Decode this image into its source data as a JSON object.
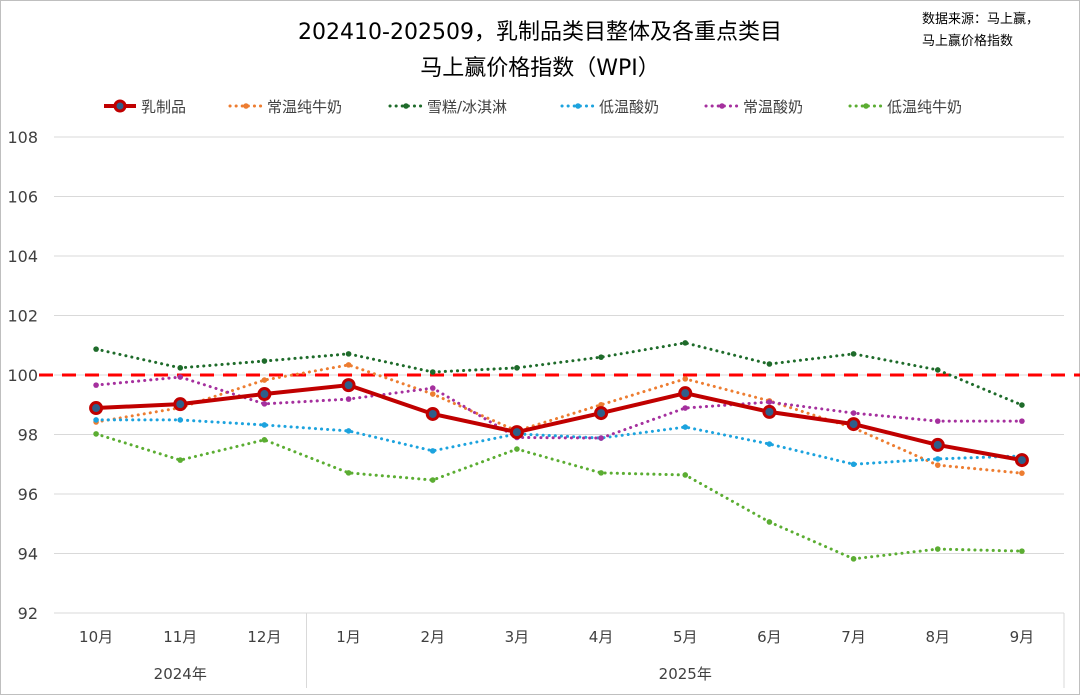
{
  "chart_data": {
    "type": "line",
    "title": "202410-202509，乳制品类目整体及各重点类目",
    "subtitle": "马上赢价格指数（WPI）",
    "source_line1": "数据来源：马上赢，",
    "source_line2": "马上赢价格指数",
    "categories": [
      "10月",
      "11月",
      "12月",
      "1月",
      "2月",
      "3月",
      "4月",
      "5月",
      "6月",
      "7月",
      "8月",
      "9月"
    ],
    "year_groups": [
      {
        "label": "2024年",
        "count": 3
      },
      {
        "label": "2025年",
        "count": 9
      }
    ],
    "ylim": [
      92,
      108
    ],
    "yticks": [
      "92",
      "94",
      "96",
      "98",
      "100",
      "102",
      "104",
      "106",
      "108"
    ],
    "reference_line": 100,
    "reference_color": "#FF0000",
    "grid": true,
    "legend_position": "top",
    "series": [
      {
        "name": "乳制品",
        "color": "#C00000",
        "style": "solid-marker",
        "values": [
          98.89,
          99.02,
          99.36,
          99.66,
          98.69,
          98.08,
          98.72,
          99.39,
          98.76,
          98.35,
          97.65,
          97.14
        ]
      },
      {
        "name": "常温纯牛奶",
        "color": "#ED7D31",
        "style": "dotted",
        "values": [
          98.42,
          98.9,
          99.83,
          100.34,
          99.36,
          98.12,
          99.0,
          99.87,
          99.13,
          98.22,
          96.97,
          96.7
        ]
      },
      {
        "name": "雪糕/冰淇淋",
        "color": "#1E6B2A",
        "style": "dotted",
        "values": [
          100.87,
          100.24,
          100.47,
          100.71,
          100.1,
          100.24,
          100.6,
          101.08,
          100.37,
          100.71,
          100.17,
          98.99
        ]
      },
      {
        "name": "低温酸奶",
        "color": "#1CA3DE",
        "style": "dotted",
        "values": [
          98.49,
          98.49,
          98.32,
          98.12,
          97.45,
          98.02,
          97.88,
          98.25,
          97.68,
          97.0,
          97.18,
          97.28
        ]
      },
      {
        "name": "常温酸奶",
        "color": "#A5309E",
        "style": "dotted",
        "values": [
          99.66,
          99.93,
          99.03,
          99.19,
          99.56,
          97.9,
          97.88,
          98.89,
          99.09,
          98.72,
          98.45,
          98.45
        ]
      },
      {
        "name": "低温纯牛奶",
        "color": "#5BAD32",
        "style": "dotted",
        "values": [
          98.02,
          97.14,
          97.82,
          96.71,
          96.47,
          97.51,
          96.71,
          96.64,
          95.06,
          93.82,
          94.15,
          94.08
        ]
      }
    ]
  }
}
